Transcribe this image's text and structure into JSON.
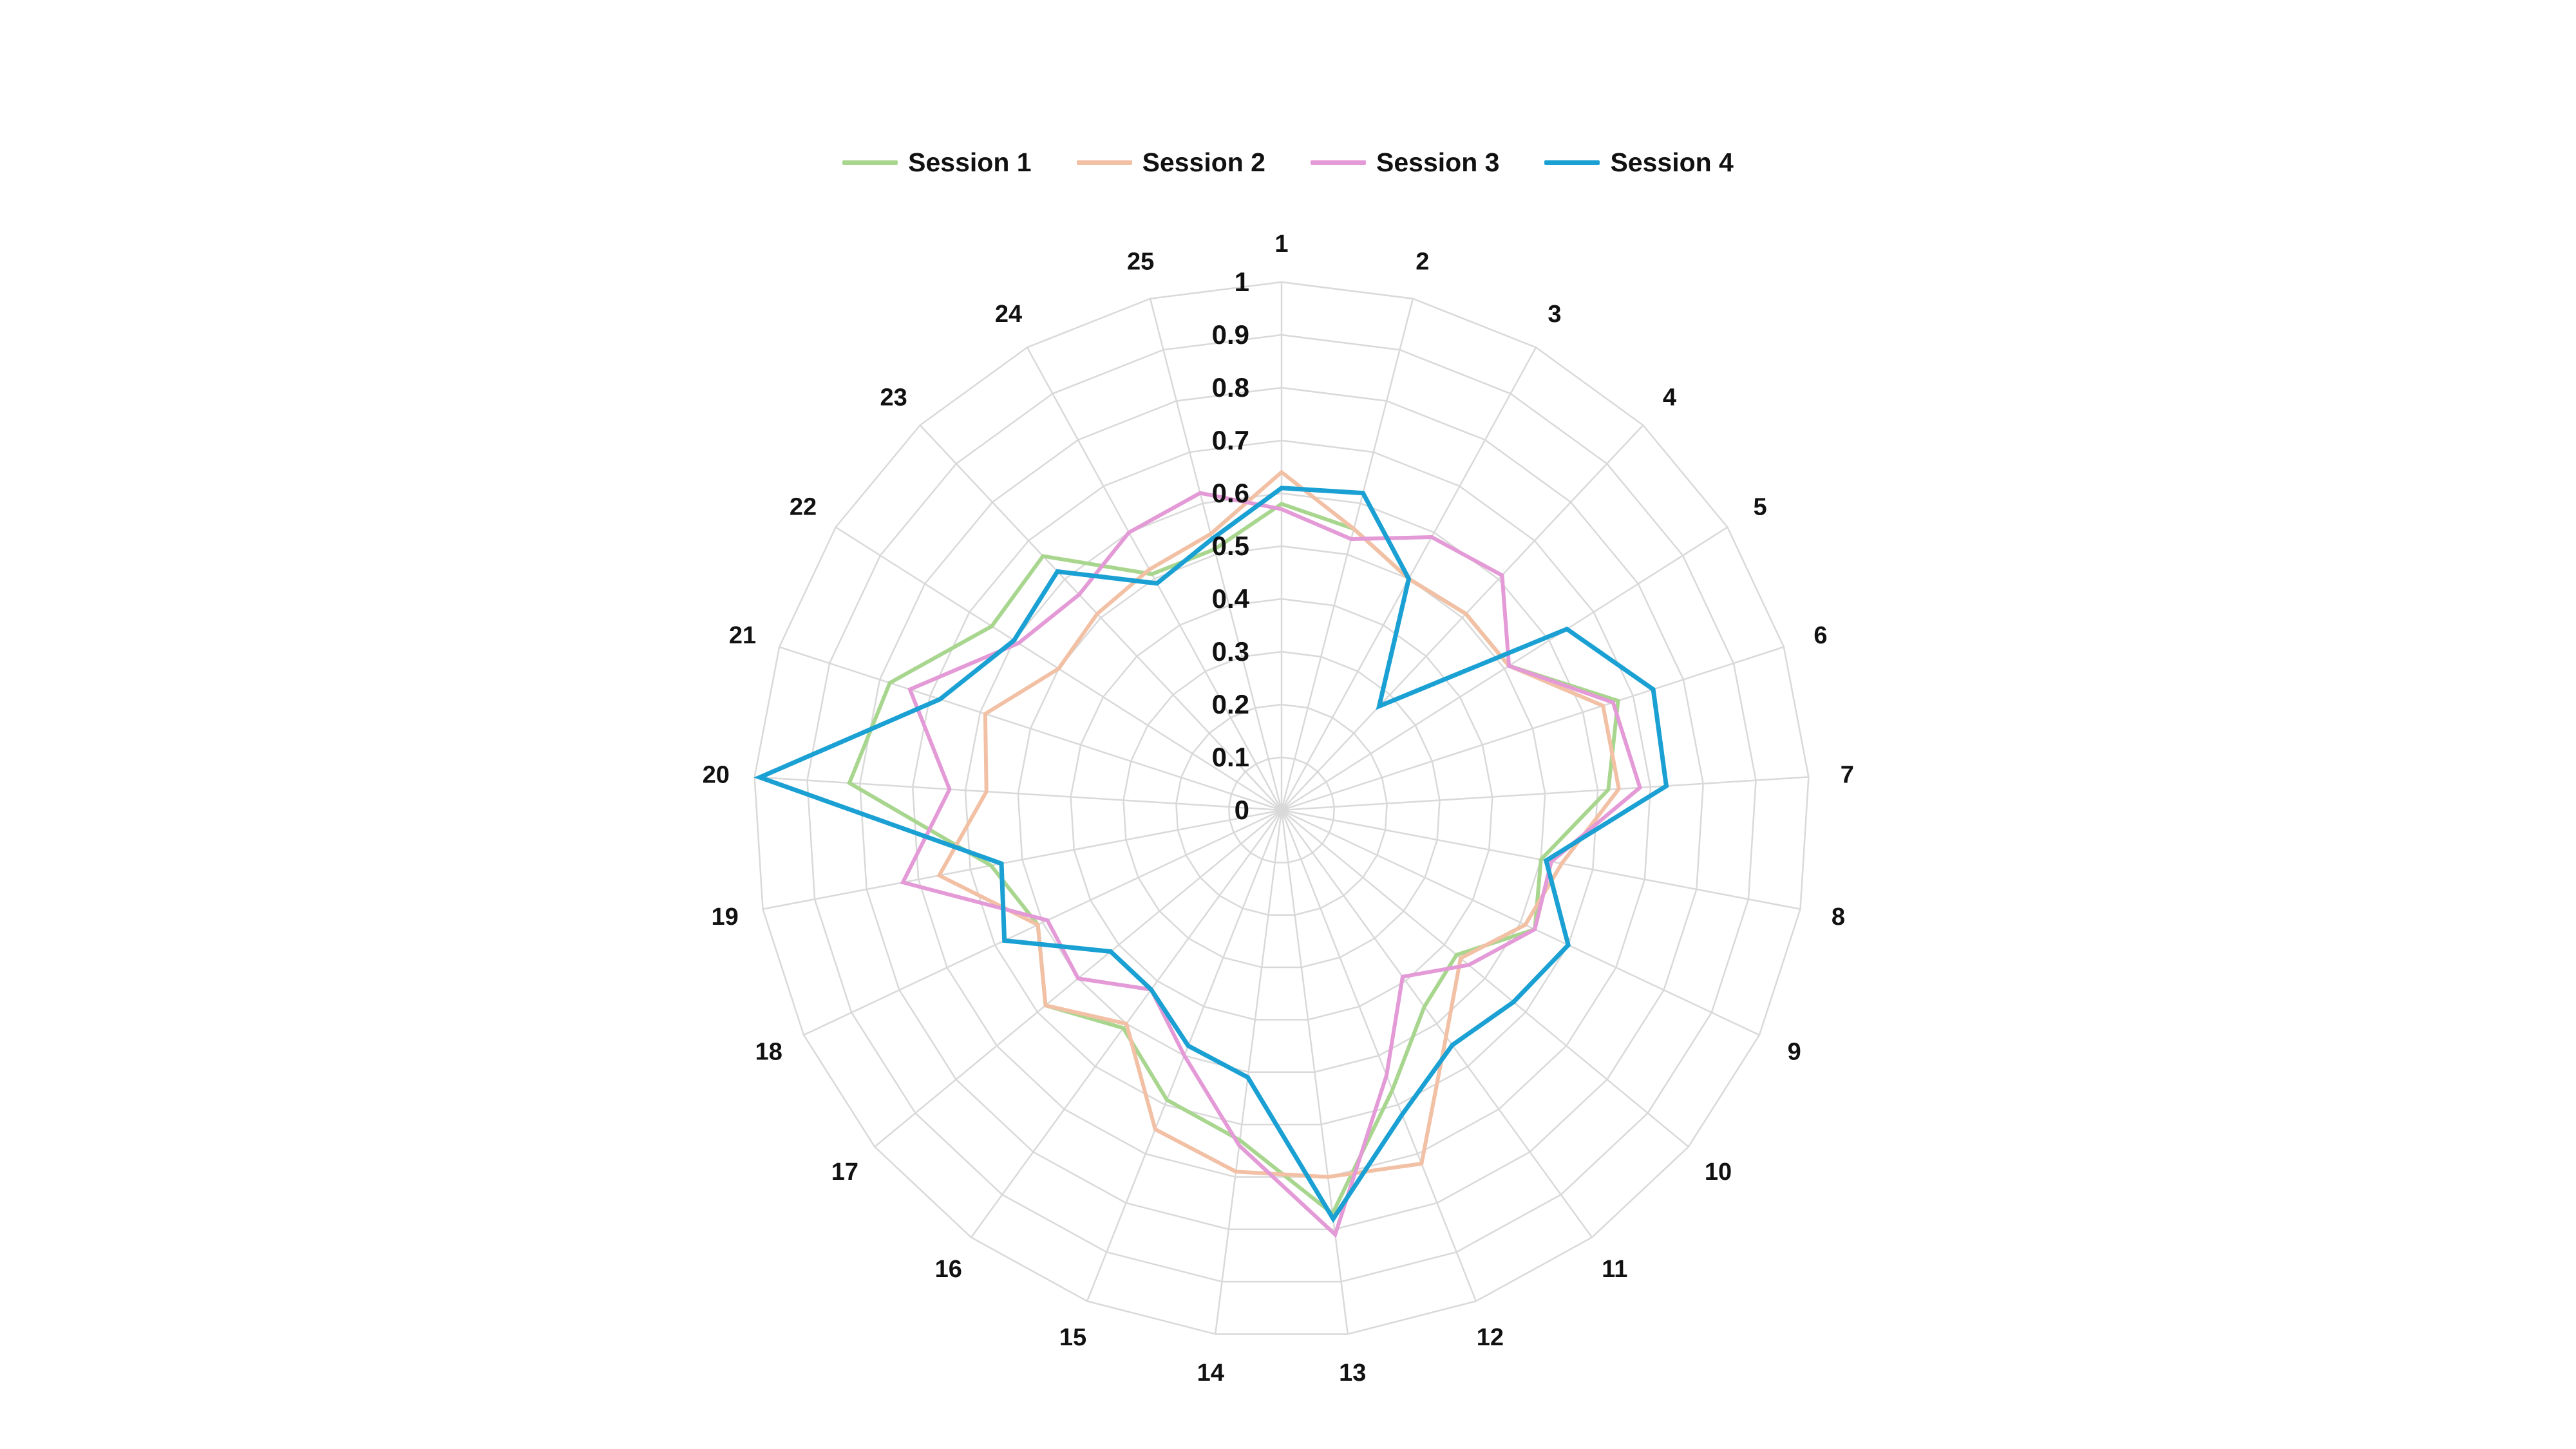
{
  "chart_data": {
    "type": "radar",
    "title": "",
    "categories": [
      "1",
      "2",
      "3",
      "4",
      "5",
      "6",
      "7",
      "8",
      "9",
      "10",
      "11",
      "12",
      "13",
      "14",
      "15",
      "16",
      "17",
      "18",
      "19",
      "20",
      "21",
      "22",
      "23",
      "24",
      "25"
    ],
    "rlim": [
      0,
      1
    ],
    "radial_ticks": [
      "0",
      "0.1",
      "0.2",
      "0.3",
      "0.4",
      "0.5",
      "0.6",
      "0.7",
      "0.8",
      "0.9",
      "1"
    ],
    "grid": true,
    "legend_position": "top",
    "series": [
      {
        "name": "Session 1",
        "color": "#a9d68f",
        "values": [
          0.58,
          0.55,
          0.5,
          0.51,
          0.51,
          0.67,
          0.62,
          0.5,
          0.53,
          0.43,
          0.46,
          0.57,
          0.77,
          0.63,
          0.59,
          0.51,
          0.58,
          0.51,
          0.56,
          0.82,
          0.78,
          0.65,
          0.66,
          0.51,
          0.51
        ]
      },
      {
        "name": "Session 2",
        "color": "#f2c0a4",
        "values": [
          0.64,
          0.55,
          0.5,
          0.51,
          0.51,
          0.64,
          0.64,
          0.54,
          0.51,
          0.44,
          0.53,
          0.72,
          0.7,
          0.69,
          0.65,
          0.5,
          0.58,
          0.51,
          0.66,
          0.56,
          0.59,
          0.5,
          0.51,
          0.52,
          0.54
        ]
      },
      {
        "name": "Session 3",
        "color": "#e39ad6",
        "values": [
          0.57,
          0.53,
          0.59,
          0.61,
          0.51,
          0.66,
          0.68,
          0.52,
          0.53,
          0.46,
          0.39,
          0.54,
          0.81,
          0.64,
          0.5,
          0.42,
          0.5,
          0.49,
          0.73,
          0.63,
          0.74,
          0.59,
          0.56,
          0.6,
          0.62
        ]
      },
      {
        "name": "Session 4",
        "color": "#1aa0d3",
        "values": [
          0.61,
          0.62,
          0.5,
          0.27,
          0.64,
          0.74,
          0.73,
          0.51,
          0.6,
          0.57,
          0.55,
          0.62,
          0.78,
          0.51,
          0.48,
          0.42,
          0.42,
          0.58,
          0.54,
          0.99,
          0.68,
          0.6,
          0.62,
          0.49,
          0.53
        ]
      }
    ]
  }
}
